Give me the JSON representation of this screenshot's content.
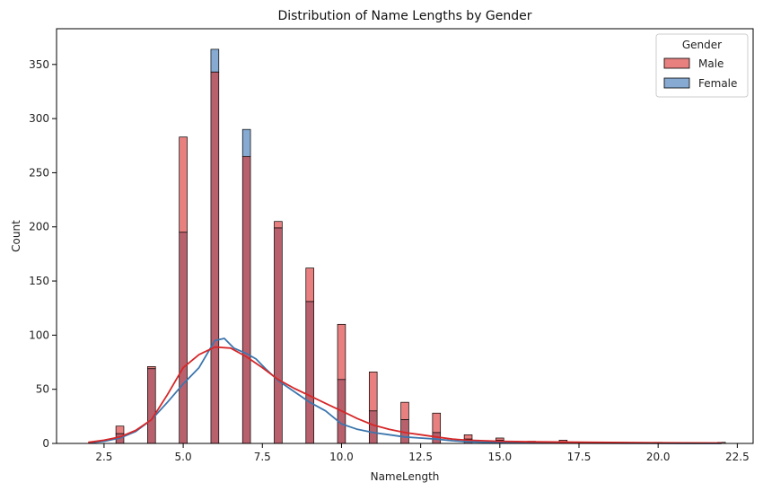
{
  "chart_data": {
    "type": "histogram",
    "title": "Distribution of Name Lengths by Gender",
    "xlabel": "NameLength",
    "ylabel": "Count",
    "xlim": [
      1.0,
      23.0
    ],
    "ylim": [
      0,
      383
    ],
    "xticks": [
      2.5,
      5.0,
      7.5,
      10.0,
      12.5,
      15.0,
      17.5,
      20.0,
      22.5
    ],
    "xtick_labels": [
      "2.5",
      "5.0",
      "7.5",
      "10.0",
      "12.5",
      "15.0",
      "17.5",
      "20.0",
      "22.5"
    ],
    "yticks": [
      0,
      50,
      100,
      150,
      200,
      250,
      300,
      350
    ],
    "ytick_labels": [
      "0",
      "50",
      "100",
      "150",
      "200",
      "250",
      "300",
      "350"
    ],
    "bin_width": 0.25,
    "grid": false,
    "legend": {
      "title": "Gender",
      "placement": "top-right"
    },
    "series": [
      {
        "name": "Male",
        "color": "#e88080",
        "kde_color": "#d62728",
        "bins": [
          {
            "x": 3,
            "count": 16
          },
          {
            "x": 4,
            "count": 71
          },
          {
            "x": 5,
            "count": 283
          },
          {
            "x": 6,
            "count": 343
          },
          {
            "x": 7,
            "count": 265
          },
          {
            "x": 8,
            "count": 205
          },
          {
            "x": 9,
            "count": 162
          },
          {
            "x": 10,
            "count": 110
          },
          {
            "x": 11,
            "count": 66
          },
          {
            "x": 12,
            "count": 38
          },
          {
            "x": 13,
            "count": 28
          },
          {
            "x": 14,
            "count": 8
          },
          {
            "x": 15,
            "count": 5
          },
          {
            "x": 16,
            "count": 2
          },
          {
            "x": 17,
            "count": 3
          },
          {
            "x": 18,
            "count": 1
          },
          {
            "x": 20,
            "count": 1
          },
          {
            "x": 22,
            "count": 1
          }
        ],
        "kde": [
          [
            2,
            1
          ],
          [
            2.5,
            3
          ],
          [
            3,
            6
          ],
          [
            3.5,
            12
          ],
          [
            4,
            22
          ],
          [
            4.5,
            45
          ],
          [
            5,
            70
          ],
          [
            5.5,
            82
          ],
          [
            6,
            89
          ],
          [
            6.5,
            88
          ],
          [
            7,
            80
          ],
          [
            7.5,
            70
          ],
          [
            8,
            59
          ],
          [
            8.5,
            51
          ],
          [
            9,
            44
          ],
          [
            9.5,
            37
          ],
          [
            10,
            30
          ],
          [
            10.5,
            23
          ],
          [
            11,
            17
          ],
          [
            11.5,
            13
          ],
          [
            12,
            10
          ],
          [
            12.5,
            8
          ],
          [
            13,
            6
          ],
          [
            13.5,
            4
          ],
          [
            14,
            3
          ],
          [
            15,
            2
          ],
          [
            16,
            1.5
          ],
          [
            18,
            1
          ],
          [
            20,
            0.6
          ],
          [
            22,
            0.4
          ]
        ]
      },
      {
        "name": "Female",
        "color": "#86aad2",
        "kde_color": "#3c76ad",
        "bins": [
          {
            "x": 3,
            "count": 9
          },
          {
            "x": 4,
            "count": 69
          },
          {
            "x": 5,
            "count": 195
          },
          {
            "x": 6,
            "count": 364
          },
          {
            "x": 7,
            "count": 290
          },
          {
            "x": 8,
            "count": 199
          },
          {
            "x": 9,
            "count": 131
          },
          {
            "x": 10,
            "count": 59
          },
          {
            "x": 11,
            "count": 30
          },
          {
            "x": 12,
            "count": 22
          },
          {
            "x": 13,
            "count": 10
          },
          {
            "x": 14,
            "count": 4
          },
          {
            "x": 15,
            "count": 3
          }
        ],
        "kde": [
          [
            2,
            0.5
          ],
          [
            2.5,
            2
          ],
          [
            3,
            5
          ],
          [
            3.5,
            11
          ],
          [
            4,
            22
          ],
          [
            4.5,
            38
          ],
          [
            5,
            55
          ],
          [
            5.5,
            70
          ],
          [
            6,
            95
          ],
          [
            6.3,
            97
          ],
          [
            6.6,
            88
          ],
          [
            7,
            83
          ],
          [
            7.3,
            78
          ],
          [
            7.6,
            69
          ],
          [
            8,
            58
          ],
          [
            8.5,
            48
          ],
          [
            9,
            38
          ],
          [
            9.5,
            30
          ],
          [
            10,
            18
          ],
          [
            10.5,
            13
          ],
          [
            11,
            10
          ],
          [
            11.5,
            8
          ],
          [
            12,
            6
          ],
          [
            12.5,
            5
          ],
          [
            13,
            4
          ],
          [
            13.5,
            2.5
          ],
          [
            14,
            1.5
          ],
          [
            15,
            0.8
          ],
          [
            17,
            0.3
          ],
          [
            20,
            0.1
          ],
          [
            22,
            0
          ]
        ]
      }
    ]
  }
}
